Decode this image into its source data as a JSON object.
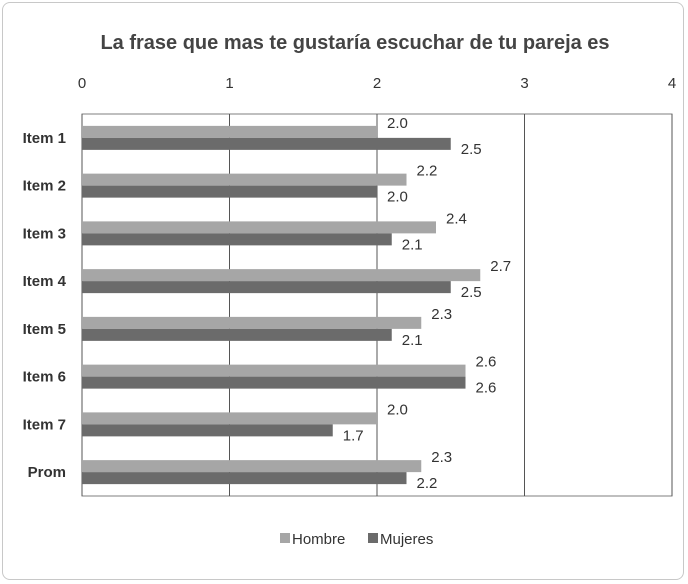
{
  "chart_data": {
    "type": "bar",
    "orientation": "horizontal",
    "title": "La frase que mas te gustaría escuchar de tu pareja es",
    "xlim": [
      0,
      4
    ],
    "x_ticks": [
      "0",
      "1",
      "2",
      "3",
      "4"
    ],
    "categories": [
      "Item 1",
      "Item 2",
      "Item 3",
      "Item 4",
      "Item 5",
      "Item 6",
      "Item 7",
      "Prom"
    ],
    "series": [
      {
        "name": "Hombre",
        "color": "#a6a6a6",
        "values": [
          2.0,
          2.2,
          2.4,
          2.7,
          2.3,
          2.6,
          2.0,
          2.3
        ],
        "labels": [
          "2.0",
          "2.2",
          "2.4",
          "2.7",
          "2.3",
          "2.6",
          "2.0",
          "2.3"
        ]
      },
      {
        "name": "Mujeres",
        "color": "#6b6b6b",
        "values": [
          2.5,
          2.0,
          2.1,
          2.5,
          2.1,
          2.6,
          1.7,
          2.2
        ],
        "labels": [
          "2.5",
          "2.0",
          "2.1",
          "2.5",
          "2.1",
          "2.6",
          "1.7",
          "2.2"
        ]
      }
    ],
    "grid": true,
    "legend_position": "bottom",
    "x_axis_position": "top"
  }
}
